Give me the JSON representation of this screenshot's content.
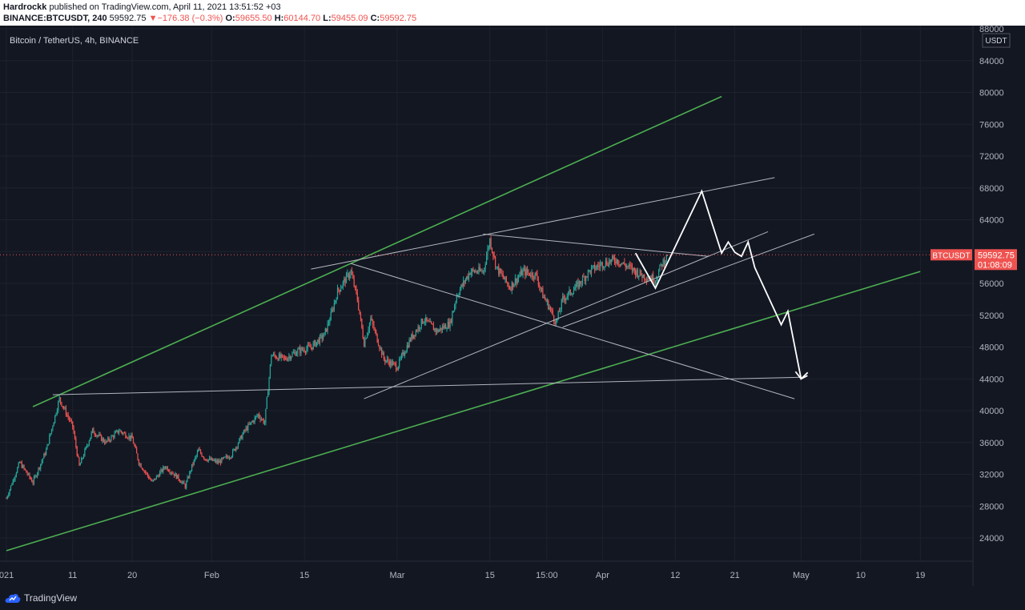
{
  "header": {
    "author": "Hardrockk",
    "published": "published on TradingView.com, April 11, 2021 13:51:52 +03",
    "symbol": "BINANCE:BTCUSDT, 240",
    "last": "59592.75",
    "change": "−176.38 (−0.3%)",
    "o_label": "O:",
    "o_value": "59655.50",
    "h_label": "H:",
    "h_value": "60144.70",
    "l_label": "L:",
    "l_value": "59455.09",
    "c_label": "C:",
    "c_value": "59592.75"
  },
  "chart_data": {
    "type": "candlestick",
    "title": "Bitcoin / TetherUS, 4h, BINANCE",
    "currency": "USDT",
    "ylim": [
      22000,
      88000
    ],
    "y_ticks": [
      24000,
      28000,
      32000,
      36000,
      40000,
      44000,
      48000,
      52000,
      56000,
      60000,
      64000,
      68000,
      72000,
      76000,
      80000,
      84000,
      88000
    ],
    "y_tick_labels": [
      "24000",
      "28000",
      "32000",
      "36000",
      "40000",
      "44000",
      "48000",
      "52000",
      "56000",
      "60000",
      "64000",
      "68000",
      "72000",
      "76000",
      "80000",
      "84000",
      "88000"
    ],
    "x_ticks": [
      {
        "day": 0,
        "label": "021"
      },
      {
        "day": 10,
        "label": "11"
      },
      {
        "day": 19,
        "label": "20"
      },
      {
        "day": 31,
        "label": "Feb"
      },
      {
        "day": 45,
        "label": "15"
      },
      {
        "day": 59,
        "label": "Mar"
      },
      {
        "day": 73,
        "label": "15"
      },
      {
        "day": 81.6,
        "label": "15:00"
      },
      {
        "day": 90,
        "label": "Apr"
      },
      {
        "day": 101,
        "label": "12"
      },
      {
        "day": 110,
        "label": "21"
      },
      {
        "day": 120,
        "label": "May"
      },
      {
        "day": 129,
        "label": "10"
      },
      {
        "day": 138,
        "label": "19"
      }
    ],
    "price_label": {
      "symbol": "BTCUSDT",
      "price": "59592.75",
      "price_value": 59592.75,
      "countdown": "01:08:09"
    },
    "series": [
      {
        "name": "BTCUSDT",
        "ohlc_anchors": [
          [
            0,
            29000
          ],
          [
            2,
            33500
          ],
          [
            4,
            31000
          ],
          [
            6,
            35000
          ],
          [
            8,
            41500
          ],
          [
            10,
            38000
          ],
          [
            11,
            33000
          ],
          [
            13,
            37500
          ],
          [
            15,
            36000
          ],
          [
            17,
            37500
          ],
          [
            19,
            36500
          ],
          [
            20,
            33500
          ],
          [
            22,
            31000
          ],
          [
            24,
            33000
          ],
          [
            26,
            31500
          ],
          [
            27,
            30500
          ],
          [
            28,
            33000
          ],
          [
            29,
            35000
          ],
          [
            30,
            34000
          ],
          [
            32,
            33500
          ],
          [
            34,
            34500
          ],
          [
            36,
            37500
          ],
          [
            38,
            39500
          ],
          [
            39,
            38500
          ],
          [
            40,
            47000
          ],
          [
            42,
            46500
          ],
          [
            44,
            47500
          ],
          [
            46,
            48000
          ],
          [
            48,
            49500
          ],
          [
            49,
            52000
          ],
          [
            50,
            55000
          ],
          [
            52,
            57500
          ],
          [
            53,
            54000
          ],
          [
            54,
            48500
          ],
          [
            55,
            51500
          ],
          [
            57,
            46500
          ],
          [
            59,
            45500
          ],
          [
            61,
            49000
          ],
          [
            63,
            51500
          ],
          [
            65,
            50000
          ],
          [
            67,
            51000
          ],
          [
            68,
            54500
          ],
          [
            70,
            57500
          ],
          [
            72,
            57500
          ],
          [
            73,
            61500
          ],
          [
            74,
            58000
          ],
          [
            76,
            55500
          ],
          [
            78,
            57500
          ],
          [
            80,
            57000
          ],
          [
            81,
            54500
          ],
          [
            82,
            53000
          ],
          [
            83,
            51000
          ],
          [
            84,
            54000
          ],
          [
            86,
            55500
          ],
          [
            88,
            57500
          ],
          [
            90,
            58500
          ],
          [
            92,
            59000
          ],
          [
            94,
            58000
          ],
          [
            96,
            57000
          ],
          [
            98,
            56500
          ],
          [
            99,
            58500
          ],
          [
            100,
            59592
          ]
        ]
      }
    ],
    "annotations": {
      "green_upper": [
        [
          4,
          40500
        ],
        [
          108,
          79500
        ]
      ],
      "green_lower": [
        [
          0,
          22400
        ],
        [
          138,
          57500
        ]
      ],
      "horizontal_support": [
        [
          7,
          42000
        ],
        [
          120,
          44200
        ]
      ],
      "upper_rising": [
        [
          46,
          57800
        ],
        [
          116,
          69300
        ]
      ],
      "falling_line_1": [
        [
          72,
          62200
        ],
        [
          106,
          59400
        ]
      ],
      "falling_line_2": [
        [
          52,
          58500
        ],
        [
          119,
          41500
        ]
      ],
      "rising_line_a": [
        [
          54,
          41500
        ],
        [
          115,
          62500
        ]
      ],
      "rising_line_b": [
        [
          84,
          50500
        ],
        [
          122,
          62200
        ]
      ],
      "projection": [
        [
          95,
          59800
        ],
        [
          98,
          55400
        ],
        [
          105,
          67600
        ],
        [
          108,
          59800
        ],
        [
          109,
          61200
        ],
        [
          110,
          59900
        ],
        [
          111,
          59400
        ],
        [
          112,
          61200
        ],
        [
          113,
          58000
        ],
        [
          117,
          50800
        ],
        [
          118,
          52500
        ],
        [
          120,
          44000
        ],
        [
          121,
          44800
        ]
      ],
      "last_price_line": 59592.75
    },
    "grid": true,
    "legend": "top-left"
  },
  "footer": {
    "brand": "TradingView"
  }
}
